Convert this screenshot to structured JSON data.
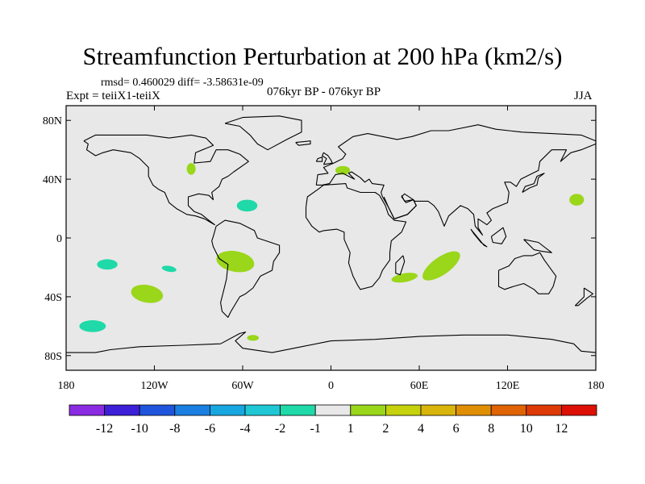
{
  "title": "Streamfunction Perturbation at 200 hPa (km2/s)",
  "stats_line": "rmsd= 0.460029 diff= -3.58631e-09",
  "experiment_line": "Expt = teiiX1-teiiX",
  "period_line": "076kyr BP - 076kyr BP",
  "season": "JJA",
  "map": {
    "projection": "cylindrical-equidistant",
    "lon_range": [
      -180,
      180
    ],
    "lat_range": [
      -90,
      90
    ],
    "background_color": "#e8e8e8",
    "coastline_color": "#000000",
    "lat_ticks": [
      {
        "lat": 80,
        "label": "80N"
      },
      {
        "lat": 40,
        "label": "40N"
      },
      {
        "lat": 0,
        "label": "0"
      },
      {
        "lat": -40,
        "label": "40S"
      },
      {
        "lat": -80,
        "label": "80S"
      }
    ],
    "lon_ticks": [
      {
        "lon": -180,
        "label": "180"
      },
      {
        "lon": -120,
        "label": "120W"
      },
      {
        "lon": -60,
        "label": "60W"
      },
      {
        "lon": 0,
        "label": "0"
      },
      {
        "lon": 60,
        "label": "60E"
      },
      {
        "lon": 120,
        "label": "120E"
      },
      {
        "lon": 180,
        "label": "180"
      }
    ]
  },
  "anomalies": [
    {
      "lon": -95,
      "lat": 47,
      "rlon": 3,
      "rlat": 4,
      "class": "pos1",
      "rot": 0
    },
    {
      "lon": 8,
      "lat": 46,
      "rlon": 5,
      "rlat": 3,
      "class": "pos1",
      "rot": 0
    },
    {
      "lon": -57,
      "lat": 22,
      "rlon": 7,
      "rlat": 4,
      "class": "neg1",
      "rot": 0
    },
    {
      "lon": 167,
      "lat": 26,
      "rlon": 5,
      "rlat": 4,
      "class": "pos1",
      "rot": 0
    },
    {
      "lon": -152,
      "lat": -18,
      "rlon": 7,
      "rlat": 3.5,
      "class": "neg1",
      "rot": 0
    },
    {
      "lon": -110,
      "lat": -21,
      "rlon": 5,
      "rlat": 2,
      "class": "neg1",
      "rot": 10
    },
    {
      "lon": -65,
      "lat": -16,
      "rlon": 13,
      "rlat": 7,
      "class": "pos1",
      "rot": 10
    },
    {
      "lon": -125,
      "lat": -38,
      "rlon": 11,
      "rlat": 6,
      "class": "pos1",
      "rot": 10
    },
    {
      "lon": -162,
      "lat": -60,
      "rlon": 9,
      "rlat": 4,
      "class": "neg1",
      "rot": 0
    },
    {
      "lon": -53,
      "lat": -68,
      "rlon": 4,
      "rlat": 2,
      "class": "pos1",
      "rot": 0
    },
    {
      "lon": 75,
      "lat": -19,
      "rlon": 15,
      "rlat": 6,
      "class": "pos1",
      "rot": -35
    },
    {
      "lon": 50,
      "lat": -27,
      "rlon": 9,
      "rlat": 3,
      "class": "pos1",
      "rot": -10
    }
  ],
  "colorbar": {
    "colors": [
      "#8a2be2",
      "#3c1fd6",
      "#1f55dd",
      "#1a7fe0",
      "#18a6e0",
      "#1fc7d4",
      "#1fd9a8",
      "#e8e8e8",
      "#9ad61a",
      "#c5d20c",
      "#d9b40a",
      "#e08f05",
      "#e06305",
      "#dd3a05",
      "#dd1005"
    ],
    "labels": [
      "-12",
      "-10",
      "-8",
      "-6",
      "-4",
      "-2",
      "-1",
      "1",
      "2",
      "4",
      "6",
      "8",
      "10",
      "12"
    ]
  },
  "class_colors": {
    "neg1": "#1fd9a8",
    "pos1": "#9ad61a"
  }
}
